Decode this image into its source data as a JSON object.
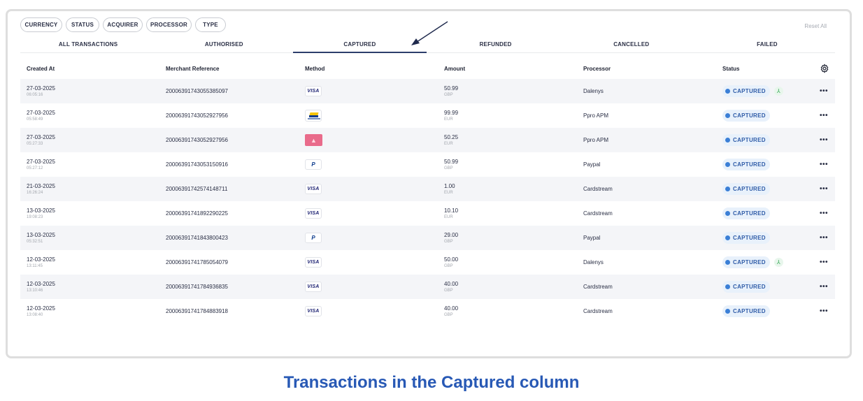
{
  "filters": [
    "CURRENCY",
    "STATUS",
    "ACQUIRER",
    "PROCESSOR",
    "TYPE"
  ],
  "reset_label": "Reset All",
  "tabs": [
    "ALL TRANSACTIONS",
    "AUTHORISED",
    "CAPTURED",
    "REFUNDED",
    "CANCELLED",
    "FAILED"
  ],
  "active_tab": "CAPTURED",
  "columns": [
    "Created At",
    "Merchant Reference",
    "Method",
    "Amount",
    "Processor",
    "Status"
  ],
  "settings_icon": "gear-icon",
  "rows": [
    {
      "date": "27-03-2025",
      "time": "06:05:16",
      "ref": "20006391743055385097",
      "method": "visa",
      "method_label": "VISA",
      "amount": "50.99",
      "currency": "GBP",
      "processor": "Dalenys",
      "status": "CAPTURED",
      "split": true
    },
    {
      "date": "27-03-2025",
      "time": "05:58:49",
      "ref": "20006391743052927956",
      "method": "bancontact",
      "method_label": "",
      "amount": "99.99",
      "currency": "EUR",
      "processor": "Ppro APM",
      "status": "CAPTURED",
      "split": false
    },
    {
      "date": "27-03-2025",
      "time": "05:27:33",
      "ref": "20006391743052927956",
      "method": "pink-apm",
      "method_label": "",
      "amount": "50.25",
      "currency": "EUR",
      "processor": "Ppro APM",
      "status": "CAPTURED",
      "split": false
    },
    {
      "date": "27-03-2025",
      "time": "05:27:12",
      "ref": "20006391743053150916",
      "method": "paypal",
      "method_label": "P",
      "amount": "50.99",
      "currency": "GBP",
      "processor": "Paypal",
      "status": "CAPTURED",
      "split": false
    },
    {
      "date": "21-03-2025",
      "time": "16:26:24",
      "ref": "20006391742574148711",
      "method": "visa",
      "method_label": "VISA",
      "amount": "1.00",
      "currency": "EUR",
      "processor": "Cardstream",
      "status": "CAPTURED",
      "split": false
    },
    {
      "date": "13-03-2025",
      "time": "19:08:23",
      "ref": "20006391741892290225",
      "method": "visa",
      "method_label": "VISA",
      "amount": "10.10",
      "currency": "EUR",
      "processor": "Cardstream",
      "status": "CAPTURED",
      "split": false
    },
    {
      "date": "13-03-2025",
      "time": "05:32:51",
      "ref": "20006391741843800423",
      "method": "paypal",
      "method_label": "P",
      "amount": "29.00",
      "currency": "GBP",
      "processor": "Paypal",
      "status": "CAPTURED",
      "split": false
    },
    {
      "date": "12-03-2025",
      "time": "13:11:45",
      "ref": "20006391741785054079",
      "method": "visa",
      "method_label": "VISA",
      "amount": "50.00",
      "currency": "GBP",
      "processor": "Dalenys",
      "status": "CAPTURED",
      "split": true
    },
    {
      "date": "12-03-2025",
      "time": "13:10:46",
      "ref": "20006391741784936835",
      "method": "visa",
      "method_label": "VISA",
      "amount": "40.00",
      "currency": "GBP",
      "processor": "Cardstream",
      "status": "CAPTURED",
      "split": false
    },
    {
      "date": "12-03-2025",
      "time": "13:08:40",
      "ref": "20006391741784883918",
      "method": "visa",
      "method_label": "VISA",
      "amount": "40.00",
      "currency": "GBP",
      "processor": "Cardstream",
      "status": "CAPTURED",
      "split": false
    }
  ],
  "row_action_label": "•••",
  "split_glyph": "⅄",
  "caption": "Transactions in the Captured column",
  "colors": {
    "accent": "#2c3e6b",
    "status_bg": "#e8f1fb",
    "status_text": "#2f5ca8",
    "status_dot": "#3b7fd6",
    "caption": "#2859b5"
  }
}
